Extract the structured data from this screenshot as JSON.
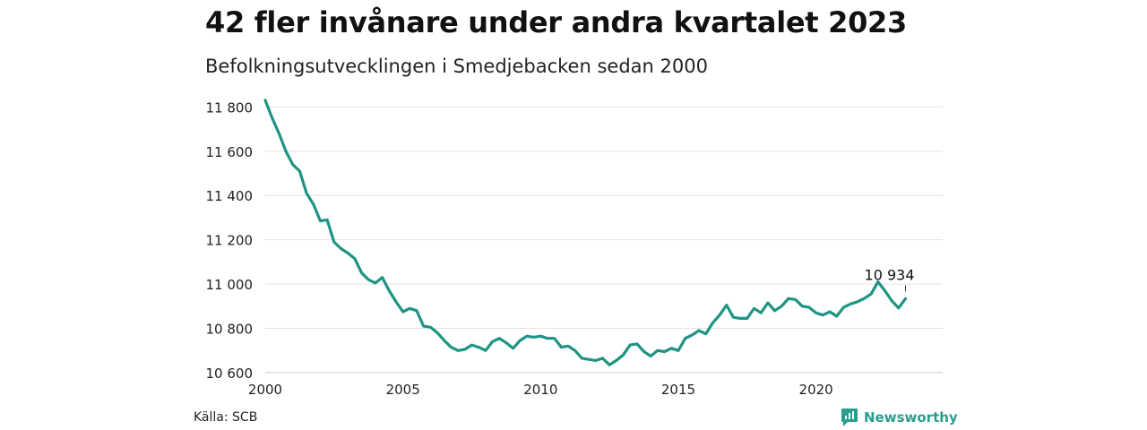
{
  "title": "42 fler invånare under andra kvartalet 2023",
  "subtitle": "Befolkningsutvecklingen i Smedjebacken sedan 2000",
  "source": "Källa: SCB",
  "brand": "Newsworthy",
  "colors": {
    "line": "#1f9484",
    "grid": "#e3e3e3",
    "brand": "#2a9d8f"
  },
  "chart_data": {
    "type": "line",
    "title": "42 fler invånare under andra kvartalet 2023",
    "subtitle": "Befolkningsutvecklingen i Smedjebacken sedan 2000",
    "xlabel": "",
    "ylabel": "",
    "xlim": [
      2000,
      2024.6
    ],
    "ylim": [
      10600,
      11870
    ],
    "grid": true,
    "y_ticks": [
      10600,
      10800,
      11000,
      11200,
      11400,
      11600,
      11800
    ],
    "y_tick_labels": [
      "10 600",
      "10 800",
      "11 000",
      "11 200",
      "11 400",
      "11 600",
      "11 800"
    ],
    "x_ticks": [
      2000,
      2005,
      2010,
      2015,
      2020
    ],
    "x_tick_labels": [
      "2000",
      "2005",
      "2010",
      "2015",
      "2020"
    ],
    "annotation": {
      "text": "10 934",
      "x": 2023.25,
      "y": 10934
    },
    "series": [
      {
        "values": [
          11830,
          11750,
          11680,
          11600,
          11540,
          11510,
          11410,
          11360,
          11285,
          11290,
          11190,
          11160,
          11140,
          11115,
          11050,
          11020,
          11005,
          11030,
          10970,
          10920,
          10875,
          10890,
          10880,
          10810,
          10805,
          10780,
          10745,
          10715,
          10700,
          10705,
          10725,
          10715,
          10700,
          10740,
          10755,
          10735,
          10710,
          10745,
          10765,
          10760,
          10765,
          10755,
          10755,
          10715,
          10720,
          10700,
          10665,
          10660,
          10655,
          10665,
          10635,
          10655,
          10680,
          10725,
          10730,
          10695,
          10675,
          10700,
          10695,
          10710,
          10700,
          10755,
          10770,
          10790,
          10775,
          10825,
          10860,
          10905,
          10850,
          10845,
          10845,
          10890,
          10870,
          10915,
          10880,
          10900,
          10935,
          10930,
          10900,
          10895,
          10870,
          10860,
          10875,
          10855,
          10895,
          10910,
          10920,
          10935,
          10955,
          11010,
          10970,
          10925,
          10892,
          10934
        ]
      }
    ]
  }
}
